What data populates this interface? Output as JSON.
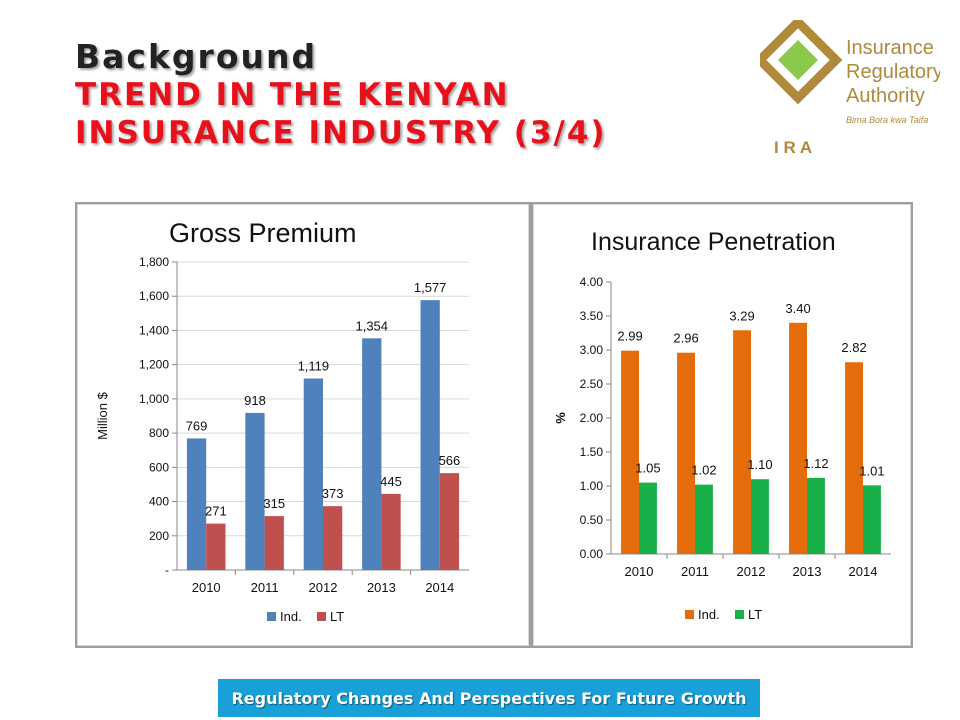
{
  "header": {
    "title_line1": "Background",
    "title_line2": "TREND IN THE KENYAN",
    "title_line3": "INSURANCE INDUSTRY (3/4)"
  },
  "logo": {
    "line1": "Insurance",
    "line2": "Regulatory",
    "line3": "Authority",
    "tagline": "Bima Bora kwa Taifa",
    "acronym": "I R A",
    "colors": {
      "gold": "#b08a3a",
      "green": "#8cc84b"
    }
  },
  "footer": {
    "text": "Regulatory Changes And Perspectives For Future Growth"
  },
  "chart_data": [
    {
      "type": "bar",
      "title": "Gross Premium",
      "ylabel": "Million $",
      "xlabel": "",
      "categories": [
        "2010",
        "2011",
        "2012",
        "2013",
        "2014"
      ],
      "series": [
        {
          "name": "Ind.",
          "values": [
            769,
            918,
            1119,
            1354,
            1577
          ],
          "labels": [
            "769",
            "918",
            "1,119",
            "1,354",
            "1,577"
          ],
          "color": "#4f81bd"
        },
        {
          "name": "LT",
          "values": [
            271,
            315,
            373,
            445,
            566
          ],
          "labels": [
            "271",
            "315",
            "373",
            "445",
            "566"
          ],
          "color": "#c0504d"
        }
      ],
      "ylim": [
        0,
        1800
      ],
      "yticks": [
        0,
        200,
        400,
        600,
        800,
        1000,
        1200,
        1400,
        1600,
        1800
      ],
      "ytick_labels": [
        "-",
        "200",
        "400",
        "600",
        "800",
        "1,000",
        "1,200",
        "1,400",
        "1,600",
        "1,800"
      ],
      "grid": true,
      "legend": "bottom"
    },
    {
      "type": "bar",
      "title": "Insurance Penetration",
      "ylabel": "%",
      "xlabel": "",
      "categories": [
        "2010",
        "2011",
        "2012",
        "2013",
        "2014"
      ],
      "series": [
        {
          "name": "Ind.",
          "values": [
            2.99,
            2.96,
            3.29,
            3.4,
            2.82
          ],
          "labels": [
            "2.99",
            "2.96",
            "3.29",
            "3.40",
            "2.82"
          ],
          "color": "#e46c0a"
        },
        {
          "name": "LT",
          "values": [
            1.05,
            1.02,
            1.1,
            1.12,
            1.01
          ],
          "labels": [
            "1.05",
            "1.02",
            "1.10",
            "1.12",
            "1.01"
          ],
          "color": "#19b04a"
        }
      ],
      "ylim": [
        0,
        4
      ],
      "yticks": [
        0,
        0.5,
        1,
        1.5,
        2,
        2.5,
        3,
        3.5,
        4
      ],
      "ytick_labels": [
        "0.00",
        "0.50",
        "1.00",
        "1.50",
        "2.00",
        "2.50",
        "3.00",
        "3.50",
        "4.00"
      ],
      "grid": false,
      "legend": "bottom"
    }
  ]
}
